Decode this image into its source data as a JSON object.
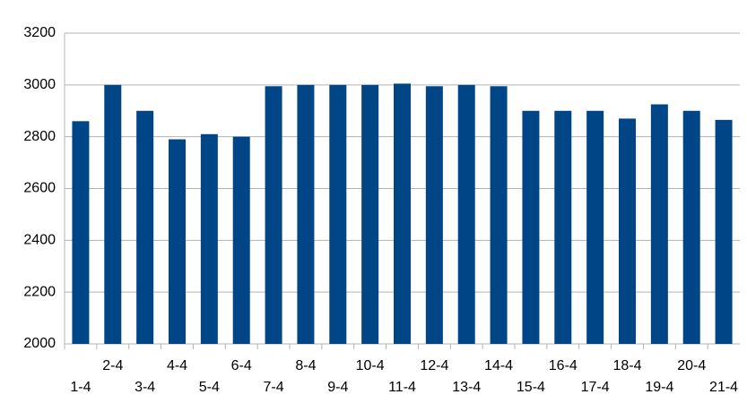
{
  "chart_data": {
    "type": "bar",
    "categories": [
      "1-4",
      "2-4",
      "3-4",
      "4-4",
      "5-4",
      "6-4",
      "7-4",
      "8-4",
      "9-4",
      "10-4",
      "11-4",
      "12-4",
      "13-4",
      "14-4",
      "15-4",
      "16-4",
      "17-4",
      "18-4",
      "19-4",
      "20-4",
      "21-4"
    ],
    "values": [
      2860,
      3000,
      2900,
      2790,
      2810,
      2800,
      2995,
      3000,
      3000,
      3000,
      3005,
      2995,
      3000,
      2995,
      2900,
      2900,
      2900,
      2870,
      2925,
      2900,
      2865
    ],
    "color": "#004586",
    "ylim": [
      2000,
      3200
    ],
    "yticks": [
      2000,
      2200,
      2400,
      2600,
      2800,
      3000,
      3200
    ],
    "grid": true
  }
}
